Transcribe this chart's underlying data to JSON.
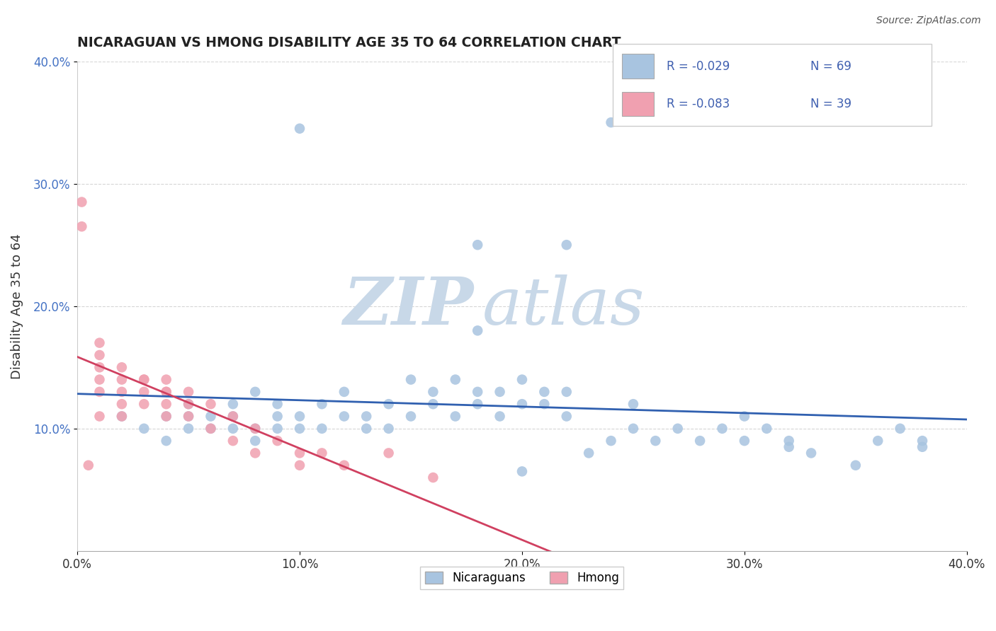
{
  "title": "NICARAGUAN VS HMONG DISABILITY AGE 35 TO 64 CORRELATION CHART",
  "source": "Source: ZipAtlas.com",
  "ylabel": "Disability Age 35 to 64",
  "xlim": [
    0.0,
    0.4
  ],
  "ylim": [
    0.0,
    0.4
  ],
  "xticks": [
    0.0,
    0.1,
    0.2,
    0.3,
    0.4
  ],
  "yticks": [
    0.1,
    0.2,
    0.3,
    0.4
  ],
  "xtick_labels": [
    "0.0%",
    "10.0%",
    "20.0%",
    "30.0%",
    "40.0%"
  ],
  "ytick_labels": [
    "10.0%",
    "20.0%",
    "30.0%",
    "40.0%"
  ],
  "blue_R": -0.029,
  "blue_N": 69,
  "pink_R": -0.083,
  "pink_N": 39,
  "blue_color": "#a8c4e0",
  "pink_color": "#f0a0b0",
  "blue_line_color": "#3060b0",
  "pink_line_color": "#d04060",
  "watermark_zip": "ZIP",
  "watermark_atlas": "atlas",
  "watermark_color": "#c8d8e8",
  "legend_label_blue": "Nicaraguans",
  "legend_label_pink": "Hmong",
  "blue_scatter_x": [
    0.02,
    0.03,
    0.04,
    0.04,
    0.05,
    0.05,
    0.05,
    0.06,
    0.06,
    0.07,
    0.07,
    0.07,
    0.08,
    0.08,
    0.08,
    0.09,
    0.09,
    0.09,
    0.1,
    0.1,
    0.11,
    0.11,
    0.12,
    0.12,
    0.13,
    0.13,
    0.14,
    0.14,
    0.15,
    0.15,
    0.16,
    0.16,
    0.17,
    0.17,
    0.18,
    0.18,
    0.19,
    0.19,
    0.2,
    0.2,
    0.21,
    0.21,
    0.22,
    0.22,
    0.23,
    0.24,
    0.25,
    0.25,
    0.26,
    0.27,
    0.28,
    0.29,
    0.3,
    0.3,
    0.31,
    0.32,
    0.33,
    0.35,
    0.36,
    0.37,
    0.38,
    0.22,
    0.24,
    0.1,
    0.18,
    0.18,
    0.32,
    0.38,
    0.2
  ],
  "blue_scatter_y": [
    0.11,
    0.1,
    0.09,
    0.11,
    0.1,
    0.11,
    0.12,
    0.1,
    0.11,
    0.1,
    0.11,
    0.12,
    0.09,
    0.1,
    0.13,
    0.1,
    0.11,
    0.12,
    0.1,
    0.11,
    0.1,
    0.12,
    0.11,
    0.13,
    0.1,
    0.11,
    0.1,
    0.12,
    0.11,
    0.14,
    0.12,
    0.13,
    0.11,
    0.14,
    0.12,
    0.13,
    0.11,
    0.13,
    0.12,
    0.14,
    0.12,
    0.13,
    0.11,
    0.13,
    0.08,
    0.09,
    0.1,
    0.12,
    0.09,
    0.1,
    0.09,
    0.1,
    0.09,
    0.11,
    0.1,
    0.09,
    0.08,
    0.07,
    0.09,
    0.1,
    0.09,
    0.25,
    0.35,
    0.345,
    0.25,
    0.18,
    0.085,
    0.085,
    0.065
  ],
  "pink_scatter_x": [
    0.002,
    0.002,
    0.005,
    0.01,
    0.01,
    0.01,
    0.01,
    0.01,
    0.01,
    0.02,
    0.02,
    0.02,
    0.02,
    0.02,
    0.03,
    0.03,
    0.03,
    0.03,
    0.04,
    0.04,
    0.04,
    0.04,
    0.04,
    0.05,
    0.05,
    0.05,
    0.06,
    0.06,
    0.07,
    0.07,
    0.08,
    0.08,
    0.09,
    0.1,
    0.1,
    0.11,
    0.12,
    0.14,
    0.16
  ],
  "pink_scatter_y": [
    0.285,
    0.265,
    0.07,
    0.14,
    0.15,
    0.16,
    0.17,
    0.13,
    0.11,
    0.15,
    0.14,
    0.12,
    0.11,
    0.13,
    0.14,
    0.13,
    0.12,
    0.14,
    0.13,
    0.12,
    0.14,
    0.11,
    0.13,
    0.12,
    0.13,
    0.11,
    0.12,
    0.1,
    0.11,
    0.09,
    0.1,
    0.08,
    0.09,
    0.08,
    0.07,
    0.08,
    0.07,
    0.08,
    0.06
  ]
}
